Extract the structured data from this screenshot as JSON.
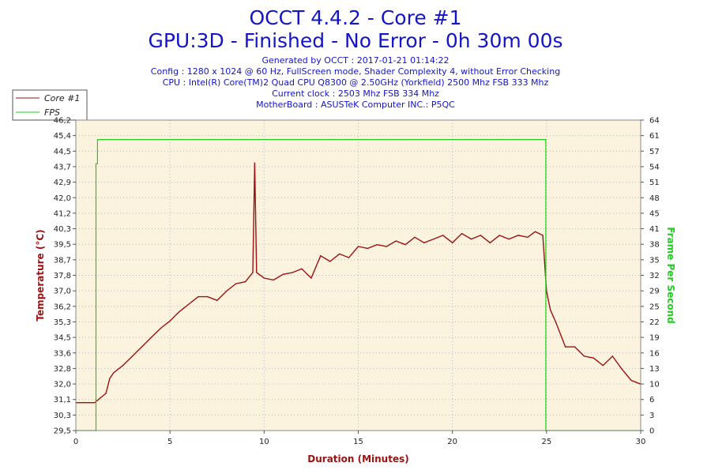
{
  "header": {
    "title_line1": "OCCT 4.4.2 - Core #1",
    "title_line2": "GPU:3D - Finished - No Error - 0h 30m 00s",
    "generated": "Generated by OCCT : 2017-01-21 01:14:22",
    "config": "Config : 1280 x 1024 @ 60 Hz, FullScreen mode, Shader Complexity 4, without Error Checking",
    "cpu": "CPU : Intel(R) Core(TM)2 Quad CPU Q8300 @ 2.50GHz (Yorkfield) 2500 Mhz FSB 333 Mhz",
    "clock": "Current clock : 2503 Mhz FSB 334 Mhz",
    "motherboard": "MotherBoard : ASUSTeK Computer INC.: P5QC"
  },
  "colors": {
    "temperature": "#9b1111",
    "fps": "#22cc22",
    "plot_bg": "#fcf3df",
    "title": "#1414c8"
  },
  "chart_data": {
    "type": "line",
    "xlabel": "Duration (Minutes)",
    "ylabel": "Temperature (°C)",
    "y2label": "Frame Per Second",
    "xlim": [
      0,
      30
    ],
    "ylim": [
      29.5,
      46.2
    ],
    "y2lim": [
      0,
      64
    ],
    "x_ticks": [
      "0",
      "5",
      "10",
      "15",
      "20",
      "25",
      "30"
    ],
    "y_ticks": [
      "29,5",
      "30,3",
      "31,1",
      "32,0",
      "32,8",
      "33,6",
      "34,5",
      "35,3",
      "36,2",
      "37,0",
      "37,8",
      "38,7",
      "39,5",
      "40,3",
      "41,2",
      "42,0",
      "42,9",
      "43,7",
      "44,5",
      "45,4",
      "46,2"
    ],
    "y2_ticks": [
      "0",
      "3",
      "6",
      "10",
      "13",
      "16",
      "19",
      "22",
      "25",
      "29",
      "32",
      "35",
      "38",
      "41",
      "45",
      "48",
      "51",
      "54",
      "57",
      "61",
      "64"
    ],
    "grid": true,
    "legend_position": "top-left",
    "series": [
      {
        "name": "Core #1",
        "axis": "left",
        "color": "#9b1111",
        "x": [
          0,
          1.0,
          1.6,
          1.8,
          2.0,
          2.5,
          3.0,
          3.5,
          4.0,
          4.5,
          5.0,
          5.5,
          6.0,
          6.5,
          7.0,
          7.5,
          8.0,
          8.5,
          9.0,
          9.4,
          9.5,
          9.6,
          10.0,
          10.5,
          11.0,
          11.5,
          12.0,
          12.5,
          13.0,
          13.5,
          14.0,
          14.5,
          15.0,
          15.5,
          16.0,
          16.5,
          17.0,
          17.5,
          18.0,
          18.5,
          19.0,
          19.5,
          20.0,
          20.5,
          21.0,
          21.5,
          22.0,
          22.5,
          23.0,
          23.5,
          24.0,
          24.4,
          24.8,
          25.0,
          25.2,
          25.5,
          26.0,
          26.5,
          27.0,
          27.5,
          28.0,
          28.5,
          29.0,
          29.5,
          30.0
        ],
        "y": [
          31.0,
          31.0,
          31.5,
          32.3,
          32.6,
          33.0,
          33.5,
          34.0,
          34.5,
          35.0,
          35.4,
          35.9,
          36.3,
          36.7,
          36.7,
          36.5,
          37.0,
          37.4,
          37.5,
          38.0,
          43.9,
          38.0,
          37.7,
          37.6,
          37.9,
          38.0,
          38.2,
          37.7,
          38.9,
          38.6,
          39.0,
          38.8,
          39.4,
          39.3,
          39.5,
          39.4,
          39.7,
          39.5,
          39.9,
          39.6,
          39.8,
          40.0,
          39.6,
          40.1,
          39.8,
          40.0,
          39.6,
          40.0,
          39.8,
          40.0,
          39.9,
          40.2,
          40.0,
          37.0,
          36.0,
          35.3,
          34.0,
          34.0,
          33.5,
          33.4,
          33.0,
          33.5,
          32.8,
          32.2,
          32.0
        ]
      },
      {
        "name": "FPS",
        "axis": "right",
        "color": "#22cc22",
        "x": [
          0,
          1.05,
          1.07,
          1.15,
          1.2,
          24.95,
          24.96,
          30
        ],
        "y": [
          0,
          0,
          55,
          60,
          60,
          60,
          0,
          0
        ]
      }
    ]
  }
}
